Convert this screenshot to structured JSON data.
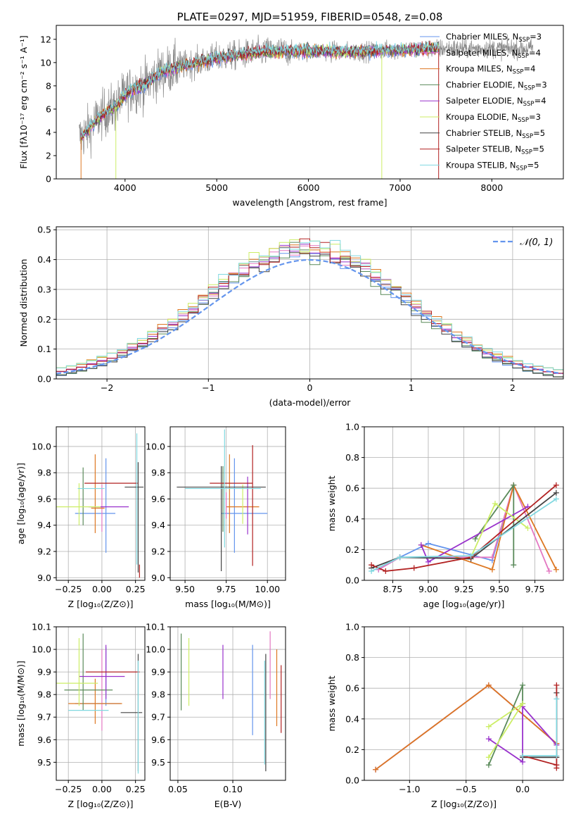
{
  "colors": {
    "chabrier_miles": "#6495ed",
    "salpeter_miles": "#e377c2",
    "kroupa_miles": "#dd7722",
    "chabrier_elodie": "#5a8a5a",
    "salpeter_elodie": "#9932cc",
    "kroupa_elodie": "#ccee66",
    "chabrier_stelib": "#444444",
    "salpeter_stelib": "#b22222",
    "kroupa_stelib": "#80d8e0",
    "data": "#888888",
    "normal": "#6495ed"
  },
  "models": [
    {
      "key": "chabrier_miles",
      "label": "Chabrier MILES, N",
      "n": "3"
    },
    {
      "key": "salpeter_miles",
      "label": "Salpeter MILES, N",
      "n": "4"
    },
    {
      "key": "kroupa_miles",
      "label": "Kroupa MILES, N",
      "n": "4"
    },
    {
      "key": "chabrier_elodie",
      "label": "Chabrier ELODIE, N",
      "n": "3"
    },
    {
      "key": "salpeter_elodie",
      "label": "Salpeter ELODIE, N",
      "n": "4"
    },
    {
      "key": "kroupa_elodie",
      "label": "Kroupa ELODIE, N",
      "n": "3"
    },
    {
      "key": "chabrier_stelib",
      "label": "Chabrier STELIB, N",
      "n": "5"
    },
    {
      "key": "salpeter_stelib",
      "label": "Salpeter STELIB, N",
      "n": "5"
    },
    {
      "key": "kroupa_stelib",
      "label": "Kroupa STELIB, N",
      "n": "5"
    }
  ],
  "legend_subscript": "SSP",
  "chart_data": [
    {
      "id": "spectrum",
      "type": "line",
      "title": "PLATE=0297, MJD=51959, FIBERID=0548, z=0.08",
      "xlabel": "wavelength [Angstrom, rest frame]",
      "ylabel": "Flux [fλ10⁻¹⁷ erg cm⁻² s⁻¹ A⁻¹]",
      "xlim": [
        3250,
        8780
      ],
      "ylim": [
        0,
        13.2
      ],
      "xticks": [
        4000,
        5000,
        6000,
        7000,
        8000
      ],
      "yticks": [
        0,
        2,
        4,
        6,
        8,
        10,
        12
      ],
      "continuum": {
        "x": [
          3520,
          3600,
          3700,
          3800,
          3900,
          4000,
          4100,
          4200,
          4300,
          4400,
          4600,
          4800,
          5000,
          5200,
          5500,
          6000,
          6500,
          7000,
          7400
        ],
        "y": [
          3.6,
          4.2,
          5.2,
          5.8,
          6.2,
          7.3,
          7.8,
          8.0,
          8.6,
          9.2,
          9.7,
          10.0,
          10.4,
          10.6,
          10.9,
          11.0,
          10.9,
          11.1,
          11.2
        ]
      },
      "data_extent": {
        "x": [
          3500,
          8450
        ]
      },
      "model_extent": {
        "x": [
          3520,
          7420
        ]
      }
    },
    {
      "id": "residuals",
      "type": "histogram",
      "xlabel": "(data-model)/error",
      "ylabel": "Normed distribution",
      "xlim": [
        -2.5,
        2.5
      ],
      "ylim": [
        0,
        0.51
      ],
      "xticks": [
        -2,
        -1,
        0,
        1,
        2
      ],
      "yticks": [
        0.0,
        0.1,
        0.2,
        0.3,
        0.4,
        0.5
      ],
      "bin_width": 0.1,
      "reference": "N(0,1)",
      "legend": "𝒩(0, 1)"
    },
    {
      "id": "age_vs_z",
      "type": "errorbar",
      "xlabel": "Z [log₁₀(Z/Z⊙)]",
      "ylabel": "age  [log₁₀(age/yr)]",
      "xlim": [
        -0.34,
        0.32
      ],
      "ylim": [
        8.98,
        10.15
      ],
      "xticks": [
        -0.25,
        0.0,
        0.25
      ],
      "yticks": [
        9.0,
        9.2,
        9.4,
        9.6,
        9.8,
        10.0
      ],
      "points": [
        {
          "model": "chabrier_miles",
          "x": -0.05,
          "xerr": 0.15,
          "y": 9.49,
          "yerr": 0.0
        },
        {
          "model": "chabrier_miles",
          "x": 0.03,
          "y": 9.55,
          "yerr": 0.36
        },
        {
          "model": "salpeter_miles",
          "x": 0.0,
          "y": 9.53,
          "yerr": 0.18
        },
        {
          "model": "kroupa_miles",
          "x": -0.05,
          "y": 9.64,
          "yerr": 0.3
        },
        {
          "model": "kroupa_miles",
          "x": -0.03,
          "xerr": 0.05,
          "y": 9.53
        },
        {
          "model": "chabrier_elodie",
          "x": -0.14,
          "y": 9.62,
          "yerr": 0.22
        },
        {
          "model": "salpeter_elodie",
          "x": 0.05,
          "xerr": 0.15,
          "y": 9.54
        },
        {
          "model": "kroupa_elodie",
          "x": -0.19,
          "xerr": 0.18,
          "y": 9.54,
          "yerr": 0.0
        },
        {
          "model": "kroupa_elodie",
          "x": -0.17,
          "y": 9.56,
          "yerr": 0.16
        },
        {
          "model": "chabrier_stelib",
          "x": 0.24,
          "xerr": 0.07,
          "y": 9.69
        },
        {
          "model": "chabrier_stelib",
          "x": 0.27,
          "y": 9.46,
          "yerr": 0.42
        },
        {
          "model": "salpeter_stelib",
          "x": 0.07,
          "xerr": 0.2,
          "y": 9.72
        },
        {
          "model": "salpeter_stelib",
          "x": 0.28,
          "y": 9.05,
          "yerr": 0.05
        },
        {
          "model": "kroupa_stelib",
          "x": -0.08,
          "xerr": 0.1,
          "y": 9.68
        },
        {
          "model": "kroupa_stelib",
          "x": 0.26,
          "y": 9.6,
          "yerr": 0.5
        }
      ]
    },
    {
      "id": "age_vs_mass",
      "type": "errorbar",
      "xlabel": "mass [log₁₀(M/M⊙)]",
      "ylabel": "",
      "xlim": [
        9.41,
        10.11
      ],
      "ylim": [
        8.98,
        10.15
      ],
      "xticks": [
        9.5,
        9.75,
        10.0
      ],
      "yticks": [
        9.0,
        9.2,
        9.4,
        9.6,
        9.8,
        10.0
      ],
      "points": [
        {
          "model": "chabrier_miles",
          "x": 9.86,
          "xerr": 0.14,
          "y": 9.49
        },
        {
          "model": "chabrier_miles",
          "x": 9.8,
          "y": 9.55,
          "yerr": 0.36
        },
        {
          "model": "kroupa_miles",
          "x": 9.77,
          "y": 9.64,
          "yerr": 0.3
        },
        {
          "model": "kroupa_miles",
          "x": 9.85,
          "xerr": 0.1,
          "y": 9.54
        },
        {
          "model": "chabrier_elodie",
          "x": 9.73,
          "y": 9.6,
          "yerr": 0.25
        },
        {
          "model": "salpeter_elodie",
          "x": 9.88,
          "y": 9.55,
          "yerr": 0.22
        },
        {
          "model": "kroupa_elodie",
          "x": 9.85,
          "y": 9.56,
          "yerr": 0.15
        },
        {
          "model": "chabrier_stelib",
          "x": 9.72,
          "xerr": 0.27,
          "y": 9.69
        },
        {
          "model": "chabrier_stelib",
          "x": 9.72,
          "y": 9.45,
          "yerr": 0.4
        },
        {
          "model": "salpeter_stelib",
          "x": 9.78,
          "xerr": 0.13,
          "y": 9.72
        },
        {
          "model": "salpeter_stelib",
          "x": 9.91,
          "y": 9.55,
          "yerr": 0.46
        },
        {
          "model": "kroupa_stelib",
          "x": 9.73,
          "xerr": 0.23,
          "y": 9.68
        },
        {
          "model": "kroupa_stelib",
          "x": 9.74,
          "y": 9.68,
          "yerr": 0.45
        },
        {
          "model": "salpeter_miles",
          "x": 9.75,
          "y": 9.55,
          "yerr": 0.1
        }
      ]
    },
    {
      "id": "weight_vs_age",
      "type": "line",
      "xlabel": "age  [log₁₀(age/yr)]",
      "ylabel": "mass weight",
      "xlim": [
        8.55,
        9.95
      ],
      "ylim": [
        0,
        1.0
      ],
      "xticks": [
        8.75,
        9.0,
        9.25,
        9.5,
        9.75
      ],
      "yticks": [
        0.0,
        0.2,
        0.4,
        0.6,
        0.8,
        1.0
      ],
      "series": [
        {
          "model": "chabrier_miles",
          "x": [
            8.65,
            8.8,
            9.0,
            9.45,
            9.6
          ],
          "y": [
            0.07,
            0.15,
            0.24,
            0.13,
            0.62
          ]
        },
        {
          "model": "salpeter_miles",
          "x": [
            8.65,
            8.8,
            9.45,
            9.6,
            9.85
          ],
          "y": [
            0.07,
            0.15,
            0.15,
            0.62,
            0.06
          ]
        },
        {
          "model": "kroupa_miles",
          "x": [
            8.95,
            9.45,
            9.6,
            9.9
          ],
          "y": [
            0.23,
            0.07,
            0.62,
            0.07
          ]
        },
        {
          "model": "chabrier_elodie",
          "x": [
            9.33,
            9.6,
            9.6
          ],
          "y": [
            0.27,
            0.62,
            0.1
          ]
        },
        {
          "model": "salpeter_elodie",
          "x": [
            8.95,
            9.0,
            9.7
          ],
          "y": [
            0.23,
            0.12,
            0.48
          ]
        },
        {
          "model": "kroupa_elodie",
          "x": [
            9.3,
            9.47,
            9.7
          ],
          "y": [
            0.15,
            0.5,
            0.34
          ]
        },
        {
          "model": "chabrier_stelib",
          "x": [
            8.6,
            8.8,
            9.3,
            9.9
          ],
          "y": [
            0.08,
            0.15,
            0.14,
            0.57
          ]
        },
        {
          "model": "salpeter_stelib",
          "x": [
            8.6,
            8.7,
            8.9,
            9.3,
            9.9
          ],
          "y": [
            0.1,
            0.06,
            0.08,
            0.15,
            0.62
          ]
        },
        {
          "model": "kroupa_stelib",
          "x": [
            8.6,
            8.8,
            9.3,
            9.9
          ],
          "y": [
            0.06,
            0.15,
            0.16,
            0.53
          ]
        }
      ]
    },
    {
      "id": "mass_vs_z",
      "type": "errorbar",
      "xlabel": "Z [log₁₀(Z/Z⊙)]",
      "ylabel": "mass [log₁₀(M/M⊙)]",
      "xlim": [
        -0.34,
        0.32
      ],
      "ylim": [
        9.42,
        10.1
      ],
      "xticks": [
        -0.25,
        0.0,
        0.25
      ],
      "yticks": [
        9.5,
        9.6,
        9.7,
        9.8,
        9.9,
        10.0,
        10.1
      ],
      "points": [
        {
          "model": "chabrier_miles",
          "x": -0.03,
          "xerr": 0.17,
          "y": 9.76
        },
        {
          "model": "chabrier_miles",
          "x": 0.03,
          "y": 9.88,
          "yerr": 0.13
        },
        {
          "model": "salpeter_miles",
          "x": 0.0,
          "y": 9.82,
          "yerr": 0.18
        },
        {
          "model": "kroupa_miles",
          "x": -0.05,
          "xerr": 0.2,
          "y": 9.76
        },
        {
          "model": "kroupa_miles",
          "x": -0.05,
          "y": 9.77,
          "yerr": 0.1
        },
        {
          "model": "chabrier_elodie",
          "x": -0.1,
          "xerr": 0.18,
          "y": 9.82
        },
        {
          "model": "chabrier_elodie",
          "x": -0.14,
          "y": 9.9,
          "yerr": 0.17
        },
        {
          "model": "salpeter_elodie",
          "x": 0.0,
          "xerr": 0.17,
          "y": 9.88
        },
        {
          "model": "salpeter_elodie",
          "x": 0.03,
          "y": 9.9,
          "yerr": 0.12
        },
        {
          "model": "kroupa_elodie",
          "x": -0.2,
          "xerr": 0.17,
          "y": 9.85
        },
        {
          "model": "kroupa_elodie",
          "x": -0.17,
          "y": 9.9,
          "yerr": 0.15
        },
        {
          "model": "chabrier_stelib",
          "x": 0.22,
          "xerr": 0.08,
          "y": 9.72
        },
        {
          "model": "chabrier_stelib",
          "x": 0.27,
          "y": 9.72,
          "yerr": 0.26
        },
        {
          "model": "salpeter_stelib",
          "x": 0.08,
          "xerr": 0.2,
          "y": 9.9
        },
        {
          "model": "kroupa_stelib",
          "x": -0.1,
          "xerr": 0.15,
          "y": 9.73
        },
        {
          "model": "kroupa_stelib",
          "x": 0.27,
          "y": 9.7,
          "yerr": 0.25
        }
      ]
    },
    {
      "id": "mass_vs_ebv",
      "type": "errorbar",
      "xlabel": "E(B-V)",
      "ylabel": "",
      "xlim": [
        0.043,
        0.148
      ],
      "ylim": [
        9.42,
        10.1
      ],
      "xticks": [
        0.05,
        0.1
      ],
      "yticks": [
        9.5,
        9.6,
        9.7,
        9.8,
        9.9,
        10.0,
        10.1
      ],
      "points": [
        {
          "model": "chabrier_elodie",
          "x": 0.053,
          "y": 9.9,
          "yerr": 0.17
        },
        {
          "model": "kroupa_elodie",
          "x": 0.06,
          "y": 9.9,
          "yerr": 0.15
        },
        {
          "model": "salpeter_elodie",
          "x": 0.091,
          "y": 9.9,
          "yerr": 0.12
        },
        {
          "model": "chabrier_miles",
          "x": 0.118,
          "y": 9.82,
          "yerr": 0.2
        },
        {
          "model": "chabrier_stelib",
          "x": 0.13,
          "y": 9.72,
          "yerr": 0.26
        },
        {
          "model": "kroupa_stelib",
          "x": 0.129,
          "y": 9.72,
          "yerr": 0.23
        },
        {
          "model": "salpeter_miles",
          "x": 0.134,
          "y": 9.93,
          "yerr": 0.15
        },
        {
          "model": "kroupa_miles",
          "x": 0.14,
          "y": 9.83,
          "yerr": 0.17
        },
        {
          "model": "salpeter_stelib",
          "x": 0.144,
          "y": 9.78,
          "yerr": 0.15
        }
      ]
    },
    {
      "id": "weight_vs_z",
      "type": "line",
      "xlabel": "Z [log₁₀(Z/Z⊙)]",
      "ylabel": "mass weight",
      "xlim": [
        -1.4,
        0.36
      ],
      "ylim": [
        0,
        1.0
      ],
      "xticks": [
        -1.0,
        -0.5,
        0.0
      ],
      "yticks": [
        0.0,
        0.2,
        0.4,
        0.6,
        0.8,
        1.0
      ],
      "series": [
        {
          "model": "chabrier_miles",
          "x": [
            -1.3,
            -0.3,
            0.3
          ],
          "y": [
            0.07,
            0.62,
            0.24
          ]
        },
        {
          "model": "salpeter_miles",
          "x": [
            -1.3,
            -0.3,
            0.3
          ],
          "y": [
            0.07,
            0.62,
            0.24
          ]
        },
        {
          "model": "kroupa_miles",
          "x": [
            -1.3,
            -0.3,
            0.3
          ],
          "y": [
            0.07,
            0.62,
            0.24
          ]
        },
        {
          "model": "chabrier_elodie",
          "x": [
            -0.3,
            0.0,
            0.0
          ],
          "y": [
            0.1,
            0.62,
            0.5
          ]
        },
        {
          "model": "salpeter_elodie",
          "x": [
            -0.3,
            0.0,
            0.0,
            0.3
          ],
          "y": [
            0.27,
            0.12,
            0.48,
            0.23
          ]
        },
        {
          "model": "kroupa_elodie",
          "x": [
            -0.3,
            0.0,
            -0.3
          ],
          "y": [
            0.35,
            0.5,
            0.15
          ]
        },
        {
          "model": "chabrier_stelib",
          "x": [
            0.0,
            0.3,
            0.3
          ],
          "y": [
            0.15,
            0.15,
            0.57
          ]
        },
        {
          "model": "salpeter_stelib",
          "x": [
            0.0,
            0.3,
            0.3,
            0.3
          ],
          "y": [
            0.16,
            0.1,
            0.62,
            0.08
          ]
        },
        {
          "model": "kroupa_stelib",
          "x": [
            0.0,
            0.3,
            0.3
          ],
          "y": [
            0.16,
            0.16,
            0.53
          ]
        }
      ]
    }
  ]
}
